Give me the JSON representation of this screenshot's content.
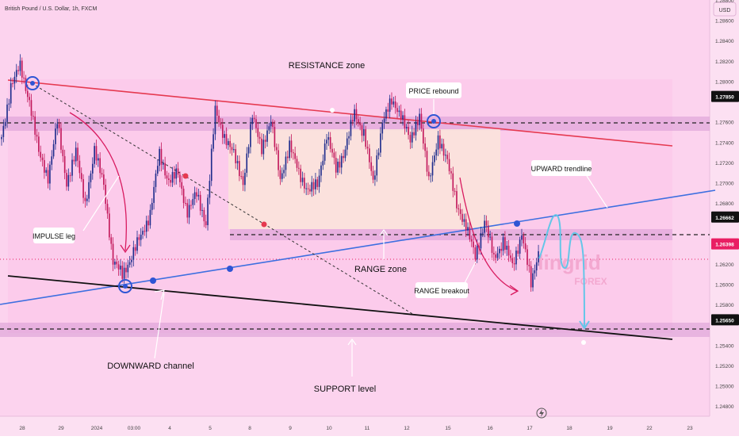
{
  "header": {
    "symbol": "British Pound / U.S. Dollar, 1h, FXCM",
    "currency": "USD"
  },
  "colors": {
    "background": "#fcd3ee",
    "bull": "#1e2c8c",
    "bear": "#c2185b",
    "resistance_line": "#e53950",
    "trendline": "#3d6fe0",
    "channel_line": "#111111",
    "range_box": "#fbe3dc",
    "zone_band": "#d79bd6",
    "projection": "#64c6e8",
    "price_tag": "#e91e63",
    "level_tag": "#111111"
  },
  "annotations": {
    "resistance_zone": "RESISTANCE zone",
    "price_rebound": "PRICE rebound",
    "upward_trendline": "UPWARD trendline",
    "impulse_leg": "IMPULSE leg",
    "range_zone": "RANGE zone",
    "range_breakout": "RANGE breakout",
    "downward_channel": "DOWNWARD channel",
    "support_level": "SUPPORT level",
    "watermark": "lingrid",
    "watermark_sub": "FOREX"
  },
  "chart_data": {
    "type": "candlestick",
    "title": "British Pound / U.S. Dollar, 1h, FXCM",
    "ylabel": "USD",
    "ylim": [
      1.247,
      1.288
    ],
    "y_ticks": [
      "1.28800",
      "1.28600",
      "1.28400",
      "1.28200",
      "1.28000",
      "1.27600",
      "1.27400",
      "1.27200",
      "1.27000",
      "1.26800",
      "1.26200",
      "1.26000",
      "1.25800",
      "1.25400",
      "1.25200",
      "1.25000",
      "1.24800"
    ],
    "x_ticks": [
      "28",
      "29",
      "2024",
      "03:00",
      "4",
      "5",
      "8",
      "9",
      "10",
      "11",
      "12",
      "15",
      "16",
      "17",
      "18",
      "19",
      "22",
      "23"
    ],
    "price_levels": [
      {
        "label": "1.27850",
        "value": 1.2785,
        "style": "level"
      },
      {
        "label": "1.26662",
        "value": 1.26662,
        "style": "level"
      },
      {
        "label": "1.26398",
        "value": 1.26398,
        "style": "current"
      },
      {
        "label": "1.25650",
        "value": 1.2565,
        "style": "level"
      }
    ],
    "path": [
      1.2745,
      1.2795,
      1.2815,
      1.278,
      1.273,
      1.2705,
      1.276,
      1.27,
      1.273,
      1.268,
      1.273,
      1.27,
      1.262,
      1.2612,
      1.2625,
      1.265,
      1.2668,
      1.273,
      1.27,
      1.271,
      1.267,
      1.269,
      1.266,
      1.2772,
      1.2745,
      1.2728,
      1.27,
      1.2765,
      1.2735,
      1.276,
      1.2705,
      1.2735,
      1.2712,
      1.269,
      1.27,
      1.2745,
      1.2715,
      1.2732,
      1.277,
      1.2748,
      1.27,
      1.276,
      1.278,
      1.2768,
      1.274,
      1.2768,
      1.27,
      1.2745,
      1.272,
      1.268,
      1.2655,
      1.263,
      1.266,
      1.2628,
      1.264,
      1.262,
      1.2648,
      1.2602,
      1.264
    ],
    "candles_per_step": 5,
    "x_range_candles": [
      0,
      860
    ],
    "projection": [
      1.264,
      1.2685,
      1.2625,
      1.2685,
      1.2565
    ]
  }
}
